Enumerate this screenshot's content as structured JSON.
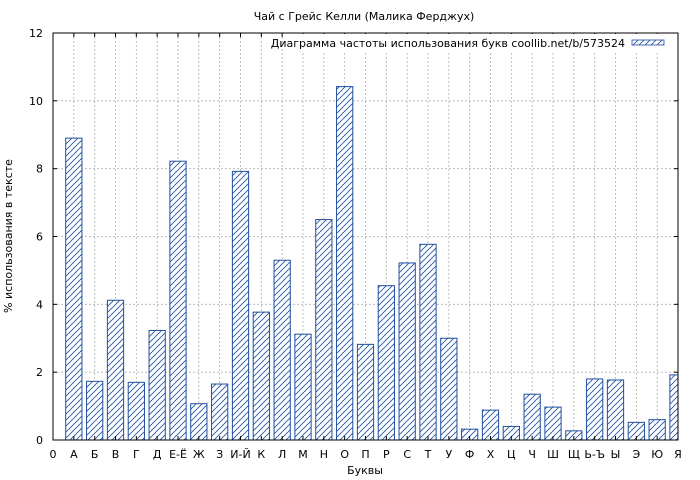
{
  "chart_data": {
    "type": "bar",
    "title": "Чай с Грейс Келли (Малика Ферджух)",
    "xlabel": "Буквы",
    "ylabel": "% использования в тексте",
    "ylim": [
      0,
      12
    ],
    "yticks": [
      0,
      2,
      4,
      6,
      8,
      10,
      12
    ],
    "x_origin_label": "0",
    "grid": true,
    "legend_position": "top-right",
    "categories": [
      "А",
      "Б",
      "В",
      "Г",
      "Д",
      "Е-Ё",
      "Ж",
      "З",
      "И-Й",
      "К",
      "Л",
      "М",
      "Н",
      "О",
      "П",
      "Р",
      "С",
      "Т",
      "У",
      "Ф",
      "Х",
      "Ц",
      "Ч",
      "Ш",
      "Щ",
      "Ь-Ъ",
      "Ы",
      "Э",
      "Ю",
      "Я"
    ],
    "series": [
      {
        "name": "Диаграмма частоты использования букв coollib.net/b/573524",
        "values": [
          8.9,
          1.73,
          4.12,
          1.7,
          3.23,
          8.22,
          1.07,
          1.65,
          7.92,
          3.77,
          5.3,
          3.12,
          6.5,
          10.42,
          2.82,
          4.55,
          5.22,
          5.77,
          3.0,
          0.32,
          0.88,
          0.4,
          1.35,
          0.97,
          0.27,
          1.8,
          1.77,
          0.52,
          0.6,
          1.92
        ]
      }
    ],
    "colors": {
      "bar": "#1f4fa0",
      "grid": "#b0b0b0",
      "axis": "#000000"
    }
  }
}
